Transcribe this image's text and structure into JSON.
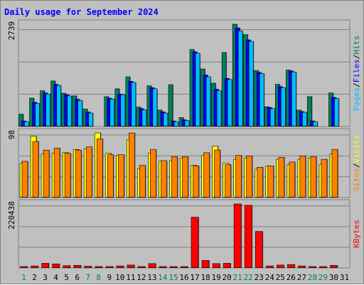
{
  "chart_data": [
    {
      "type": "bar",
      "title": "Daily usage for September 2024",
      "panel": "pages-files-hits",
      "ymax_label": "2739",
      "ylim": [
        0,
        2739
      ],
      "categories": [
        "1",
        "2",
        "3",
        "4",
        "5",
        "6",
        "7",
        "8",
        "9",
        "10",
        "11",
        "12",
        "13",
        "14",
        "15",
        "16",
        "17",
        "18",
        "19",
        "20",
        "21",
        "22",
        "23",
        "24",
        "25",
        "26",
        "27",
        "28",
        "29",
        "30",
        "31"
      ],
      "weekend_days": [
        "1",
        "7",
        "8",
        "14",
        "15",
        "21",
        "22",
        "28",
        "29"
      ],
      "legend": [
        "Pages",
        "/",
        "Files",
        "/",
        "Hits"
      ],
      "legend_colors": [
        "#00c0ff",
        "#000000",
        "#0000ff",
        "#000000",
        "#008060"
      ],
      "series": [
        {
          "name": "Hits",
          "color": "#008060",
          "values": [
            330,
            760,
            960,
            1220,
            890,
            820,
            470,
            0,
            800,
            1010,
            1330,
            520,
            1090,
            440,
            1120,
            240,
            2060,
            1540,
            1160,
            1980,
            2739,
            2460,
            1500,
            530,
            1130,
            1510,
            440,
            800,
            0,
            900,
            0
          ]
        },
        {
          "name": "Files",
          "color": "#0000ff",
          "values": [
            150,
            650,
            900,
            1130,
            850,
            730,
            390,
            0,
            760,
            870,
            1210,
            480,
            1040,
            390,
            150,
            180,
            2000,
            1380,
            1000,
            1290,
            2640,
            2320,
            1450,
            510,
            1070,
            1490,
            400,
            150,
            0,
            780,
            0
          ]
        },
        {
          "name": "Pages",
          "color": "#00c0ff",
          "values": [
            130,
            620,
            870,
            1100,
            820,
            700,
            360,
            0,
            740,
            850,
            1180,
            450,
            1010,
            360,
            130,
            160,
            1960,
            1330,
            960,
            1260,
            2560,
            2280,
            1420,
            480,
            1040,
            1460,
            380,
            130,
            0,
            750,
            0
          ]
        }
      ]
    },
    {
      "type": "bar",
      "panel": "visits-sites",
      "ymax_label": "98",
      "ylim": [
        0,
        98
      ],
      "legend": [
        "Sites",
        "/",
        "Visits"
      ],
      "legend_colors": [
        "#ff8000",
        "#000000",
        "#ffff00"
      ],
      "series": [
        {
          "name": "Visits",
          "color": "#ffff00",
          "values": [
            52,
            93,
            66,
            67,
            68,
            73,
            74,
            98,
            67,
            64,
            88,
            44,
            67,
            55,
            56,
            60,
            49,
            64,
            78,
            52,
            58,
            60,
            43,
            48,
            58,
            50,
            58,
            60,
            50,
            66,
            0
          ]
        },
        {
          "name": "Sites",
          "color": "#ff8000",
          "values": [
            55,
            85,
            72,
            75,
            67,
            72,
            77,
            89,
            65,
            65,
            98,
            49,
            73,
            56,
            62,
            62,
            48,
            68,
            72,
            50,
            64,
            63,
            46,
            48,
            61,
            54,
            63,
            62,
            58,
            73,
            0
          ]
        }
      ]
    },
    {
      "type": "bar",
      "panel": "kbytes",
      "ymax_label": "220438",
      "ylim": [
        0,
        220438
      ],
      "legend": [
        "KBytes"
      ],
      "legend_colors": [
        "#ff0000"
      ],
      "series": [
        {
          "name": "KBytes",
          "color": "#ff0000",
          "values": [
            4000,
            7000,
            16000,
            14000,
            8000,
            9000,
            6000,
            4000,
            5000,
            7000,
            10000,
            5000,
            15000,
            3000,
            3000,
            3000,
            175000,
            26000,
            15000,
            16000,
            220438,
            216000,
            126000,
            7000,
            10000,
            12000,
            7000,
            4000,
            4000,
            9000,
            0
          ]
        }
      ]
    }
  ]
}
